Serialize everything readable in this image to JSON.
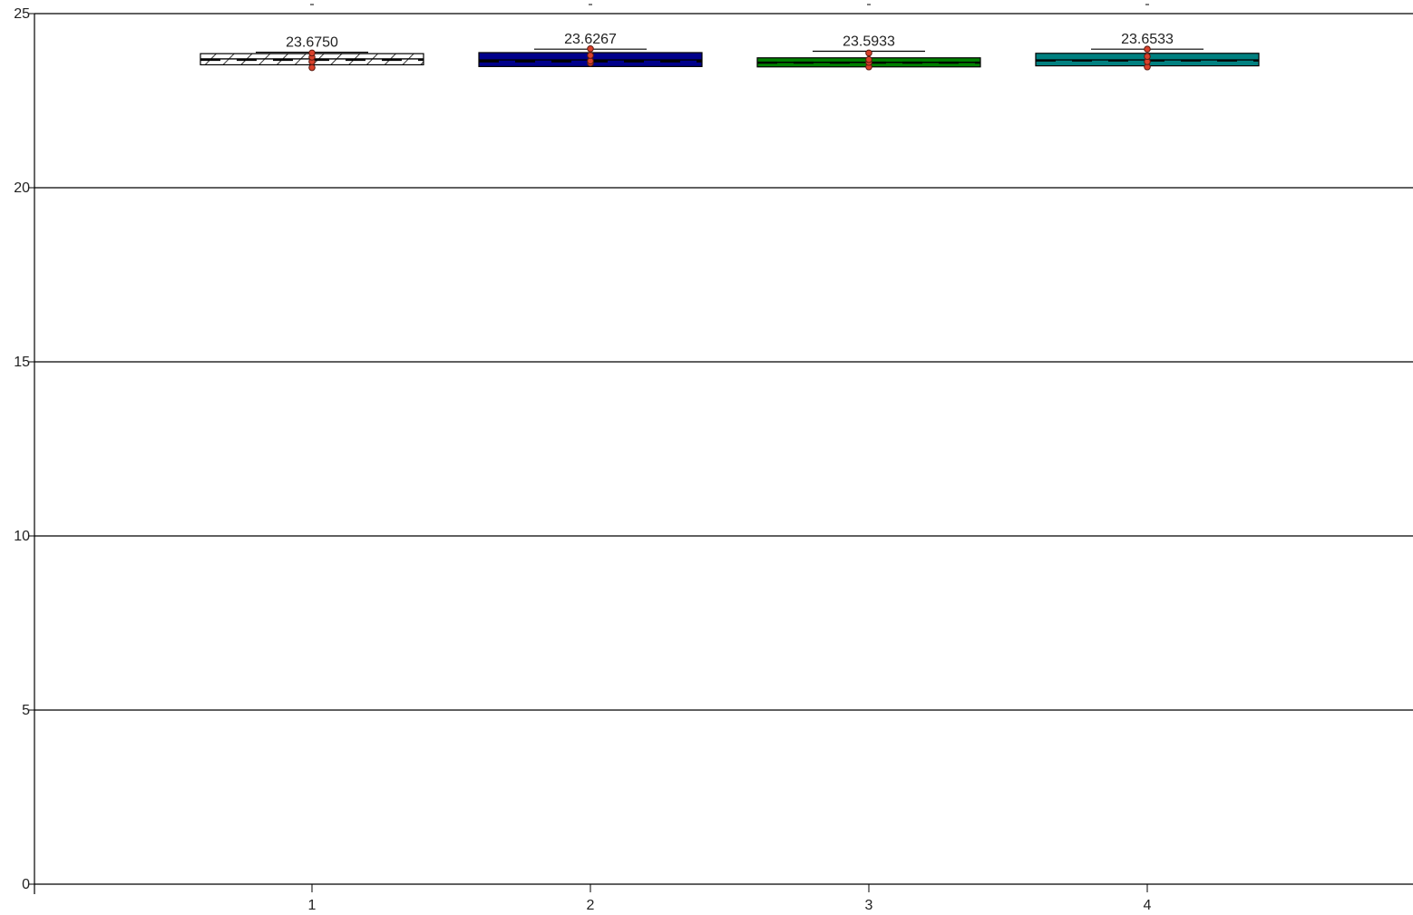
{
  "chart_data": {
    "type": "box",
    "xlabel": "",
    "ylabel": "",
    "ylim": [
      0,
      25
    ],
    "yticks": [
      "0",
      "5",
      "10",
      "15",
      "20",
      "25"
    ],
    "grid": "horizontal",
    "legend": "none",
    "categories": [
      "1",
      "2",
      "3",
      "4"
    ],
    "boxes": [
      {
        "category": "1",
        "label": "23.6750",
        "mean": 23.675,
        "q1": 23.53,
        "median": 23.7,
        "q3": 23.85,
        "whisker_high": 23.89,
        "points": [
          23.45,
          23.62,
          23.75,
          23.87
        ],
        "fill": "#ffffff",
        "pattern": "hatch"
      },
      {
        "category": "2",
        "label": "23.6267",
        "mean": 23.6267,
        "q1": 23.48,
        "median": 23.67,
        "q3": 23.88,
        "whisker_high": 23.98,
        "points": [
          23.58,
          23.64,
          23.8,
          23.99
        ],
        "fill": "#00008b",
        "pattern": "solid"
      },
      {
        "category": "3",
        "label": "23.5933",
        "mean": 23.5933,
        "q1": 23.47,
        "median": 23.6,
        "q3": 23.73,
        "whisker_high": 23.92,
        "points": [
          23.47,
          23.6,
          23.68,
          23.87
        ],
        "fill": "#008000",
        "pattern": "solid"
      },
      {
        "category": "4",
        "label": "23.6533",
        "mean": 23.6533,
        "q1": 23.5,
        "median": 23.67,
        "q3": 23.86,
        "whisker_high": 23.98,
        "points": [
          23.47,
          23.62,
          23.77,
          23.98
        ],
        "fill": "#008080",
        "pattern": "solid"
      }
    ],
    "point_color": "#d9412b"
  }
}
